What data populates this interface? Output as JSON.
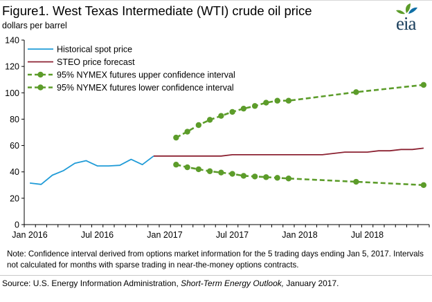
{
  "header": {
    "title": "Figure1. West Texas Intermediate (WTI) crude oil price",
    "subtitle": "dollars per barrel",
    "logo_text": "eia"
  },
  "note": "Note: Confidence interval derived from options market information for the 5 trading days ending Jan 5, 2017. Intervals not calculated for months with sparse trading in near-the-money options contracts.",
  "source": {
    "prefix": "Source: U.S. Energy Information Administration, ",
    "italic": "Short-Term Energy Outlook,",
    "suffix": " January 2017."
  },
  "colors": {
    "historical": "#1f9bd7",
    "forecast": "#8b2131",
    "confidence": "#5c9c2a",
    "axis": "#000000",
    "logo_leaves": "#5c9c2a",
    "logo_leaves_alt": "#0f6fa5"
  },
  "chart_data": {
    "type": "line",
    "title": "Figure1. West Texas Intermediate (WTI) crude oil price",
    "ylabel": "dollars per barrel",
    "ylim": [
      0,
      140
    ],
    "yticks": [
      0,
      20,
      40,
      60,
      80,
      100,
      120,
      140
    ],
    "xlim": [
      "2016-01",
      "2018-12"
    ],
    "xticks": [
      {
        "x": "2016-01",
        "label": "Jan 2016"
      },
      {
        "x": "2016-07",
        "label": "Jul 2016"
      },
      {
        "x": "2017-01",
        "label": "Jan 2017"
      },
      {
        "x": "2017-07",
        "label": "Jul 2017"
      },
      {
        "x": "2018-01",
        "label": "Jan 2018"
      },
      {
        "x": "2018-07",
        "label": "Jul 2018"
      }
    ],
    "grid": false,
    "legend_position": "top-left",
    "series": [
      {
        "name": "Historical spot price",
        "key": "historical",
        "style": "solid",
        "x": [
          "2016-01",
          "2016-02",
          "2016-03",
          "2016-04",
          "2016-05",
          "2016-06",
          "2016-07",
          "2016-08",
          "2016-09",
          "2016-10",
          "2016-11",
          "2016-12"
        ],
        "y": [
          31.5,
          30.5,
          37.5,
          41,
          46.5,
          48.5,
          44.5,
          44.5,
          45,
          49.5,
          45.5,
          52
        ]
      },
      {
        "name": "STEO price forecast",
        "key": "forecast",
        "style": "solid",
        "x": [
          "2016-12",
          "2017-01",
          "2017-02",
          "2017-03",
          "2017-04",
          "2017-05",
          "2017-06",
          "2017-07",
          "2017-08",
          "2017-09",
          "2017-10",
          "2017-11",
          "2017-12",
          "2018-01",
          "2018-02",
          "2018-03",
          "2018-04",
          "2018-05",
          "2018-06",
          "2018-07",
          "2018-08",
          "2018-09",
          "2018-10",
          "2018-11",
          "2018-12"
        ],
        "y": [
          52,
          52,
          52,
          52,
          52,
          52,
          52,
          53,
          53,
          53,
          53,
          53,
          53,
          53,
          53,
          53,
          54,
          55,
          55,
          55,
          56,
          56,
          57,
          57,
          58
        ]
      },
      {
        "name": "95% NYMEX futures upper confidence interval",
        "key": "upper",
        "style": "dashed-markers",
        "x": [
          "2017-02",
          "2017-03",
          "2017-04",
          "2017-05",
          "2017-06",
          "2017-07",
          "2017-08",
          "2017-09",
          "2017-10",
          "2017-11",
          "2017-12",
          "2018-06",
          "2018-12"
        ],
        "y": [
          66,
          70.5,
          75.5,
          79.5,
          82.5,
          85.5,
          88,
          90,
          92.5,
          94,
          94,
          100.5,
          106
        ]
      },
      {
        "name": "95% NYMEX futures lower confidence interval",
        "key": "lower",
        "style": "dashed-markers",
        "x": [
          "2017-02",
          "2017-03",
          "2017-04",
          "2017-05",
          "2017-06",
          "2017-07",
          "2017-08",
          "2017-09",
          "2017-10",
          "2017-11",
          "2017-12",
          "2018-06",
          "2018-12"
        ],
        "y": [
          45.5,
          43.5,
          42,
          40.5,
          39.5,
          38.5,
          37,
          36.5,
          36,
          35.5,
          35,
          32.5,
          30
        ]
      }
    ]
  }
}
